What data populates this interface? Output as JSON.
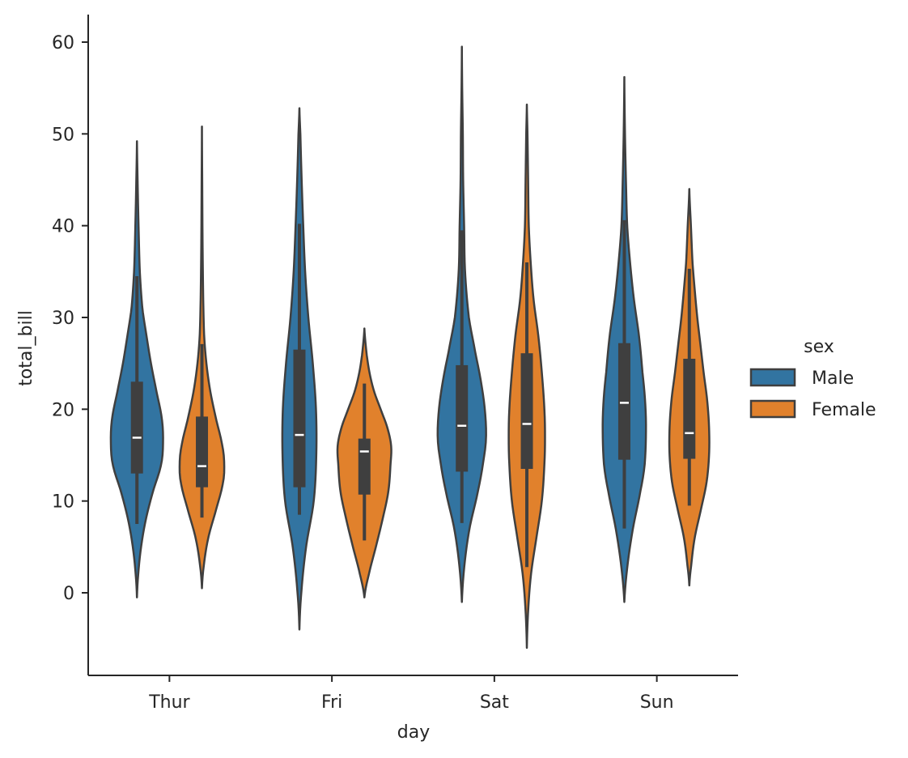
{
  "chart_data": {
    "type": "violin",
    "xlabel": "day",
    "ylabel": "total_bill",
    "categories": [
      "Thur",
      "Fri",
      "Sat",
      "Sun"
    ],
    "ylim": [
      -9,
      63
    ],
    "yticks": [
      0,
      10,
      20,
      30,
      40,
      50,
      60
    ],
    "grid": false,
    "legend": {
      "title": "sex",
      "placement": "center-right"
    },
    "series": [
      {
        "name": "Male",
        "color": "#3274a1",
        "groups": [
          {
            "category": "Thur",
            "range": [
              -0.5,
              49.2
            ],
            "box": {
              "whisker_low": 7.5,
              "q1": 13.0,
              "median": 16.9,
              "q3": 23.0,
              "whisker_high": 34.5
            },
            "density": [
              [
                -0.5,
                0.0
              ],
              [
                2,
                0.04
              ],
              [
                5,
                0.13
              ],
              [
                8,
                0.28
              ],
              [
                11,
                0.5
              ],
              [
                14,
                0.76
              ],
              [
                16.5,
                0.82
              ],
              [
                19,
                0.78
              ],
              [
                22,
                0.61
              ],
              [
                25,
                0.44
              ],
              [
                28,
                0.3
              ],
              [
                31,
                0.17
              ],
              [
                35,
                0.09
              ],
              [
                40,
                0.05
              ],
              [
                45,
                0.02
              ],
              [
                49.2,
                0.0
              ]
            ]
          },
          {
            "category": "Fri",
            "range": [
              -4,
              52.8
            ],
            "box": {
              "whisker_low": 8.5,
              "q1": 11.5,
              "median": 17.2,
              "q3": 26.5,
              "whisker_high": 40.2
            },
            "density": [
              [
                -4,
                0.0
              ],
              [
                0,
                0.06
              ],
              [
                5,
                0.21
              ],
              [
                10,
                0.45
              ],
              [
                15,
                0.53
              ],
              [
                20,
                0.52
              ],
              [
                25,
                0.42
              ],
              [
                30,
                0.28
              ],
              [
                35,
                0.18
              ],
              [
                40,
                0.12
              ],
              [
                45,
                0.07
              ],
              [
                50,
                0.03
              ],
              [
                52.8,
                0.0
              ]
            ]
          },
          {
            "category": "Sat",
            "range": [
              -1,
              59.5
            ],
            "box": {
              "whisker_low": 7.6,
              "q1": 13.2,
              "median": 18.2,
              "q3": 24.8,
              "whisker_high": 39.5
            },
            "density": [
              [
                -1,
                0.0
              ],
              [
                3,
                0.08
              ],
              [
                7,
                0.24
              ],
              [
                11,
                0.5
              ],
              [
                14.5,
                0.68
              ],
              [
                17,
                0.76
              ],
              [
                20,
                0.72
              ],
              [
                23,
                0.6
              ],
              [
                26,
                0.43
              ],
              [
                30,
                0.22
              ],
              [
                35,
                0.1
              ],
              [
                40,
                0.07
              ],
              [
                45,
                0.04
              ],
              [
                50,
                0.03
              ],
              [
                55,
                0.01
              ],
              [
                59.5,
                0.0
              ]
            ]
          },
          {
            "category": "Sun",
            "range": [
              -1,
              56.2
            ],
            "box": {
              "whisker_low": 7.0,
              "q1": 14.5,
              "median": 20.7,
              "q3": 27.2,
              "whisker_high": 40.6
            },
            "density": [
              [
                -1,
                0.0
              ],
              [
                3,
                0.1
              ],
              [
                7,
                0.27
              ],
              [
                11,
                0.5
              ],
              [
                14,
                0.64
              ],
              [
                18,
                0.68
              ],
              [
                21,
                0.65
              ],
              [
                24,
                0.57
              ],
              [
                28,
                0.46
              ],
              [
                32,
                0.3
              ],
              [
                36,
                0.18
              ],
              [
                40,
                0.09
              ],
              [
                45,
                0.05
              ],
              [
                50,
                0.02
              ],
              [
                56.2,
                0.0
              ]
            ]
          }
        ]
      },
      {
        "name": "Female",
        "color": "#e1812c",
        "groups": [
          {
            "category": "Thur",
            "range": [
              0.5,
              50.8
            ],
            "box": {
              "whisker_low": 8.2,
              "q1": 11.5,
              "median": 13.8,
              "q3": 19.2,
              "whisker_high": 27.1
            },
            "density": [
              [
                0.5,
                0.0
              ],
              [
                3,
                0.06
              ],
              [
                6,
                0.2
              ],
              [
                9,
                0.44
              ],
              [
                12,
                0.66
              ],
              [
                14,
                0.7
              ],
              [
                16,
                0.64
              ],
              [
                19,
                0.44
              ],
              [
                22,
                0.26
              ],
              [
                25,
                0.14
              ],
              [
                28,
                0.07
              ],
              [
                32,
                0.04
              ],
              [
                38,
                0.02
              ],
              [
                44,
                0.01
              ],
              [
                50.8,
                0.0
              ]
            ]
          },
          {
            "category": "Fri",
            "range": [
              -0.5,
              28.8
            ],
            "box": {
              "whisker_low": 5.7,
              "q1": 10.7,
              "median": 15.4,
              "q3": 16.8,
              "whisker_high": 22.8
            },
            "density": [
              [
                -0.5,
                0.0
              ],
              [
                2,
                0.14
              ],
              [
                5,
                0.36
              ],
              [
                8,
                0.57
              ],
              [
                11,
                0.75
              ],
              [
                14,
                0.82
              ],
              [
                16,
                0.84
              ],
              [
                18,
                0.72
              ],
              [
                20,
                0.51
              ],
              [
                22,
                0.3
              ],
              [
                24,
                0.16
              ],
              [
                26,
                0.07
              ],
              [
                28.8,
                0.0
              ]
            ]
          },
          {
            "category": "Sat",
            "range": [
              -6,
              53.2
            ],
            "box": {
              "whisker_low": 2.8,
              "q1": 13.5,
              "median": 18.4,
              "q3": 26.1,
              "whisker_high": 36.0
            },
            "density": [
              [
                -6,
                0.0
              ],
              [
                -2,
                0.04
              ],
              [
                2,
                0.13
              ],
              [
                6,
                0.3
              ],
              [
                10,
                0.47
              ],
              [
                14,
                0.55
              ],
              [
                17,
                0.57
              ],
              [
                20,
                0.55
              ],
              [
                24,
                0.47
              ],
              [
                28,
                0.36
              ],
              [
                32,
                0.21
              ],
              [
                36,
                0.12
              ],
              [
                40,
                0.06
              ],
              [
                45,
                0.04
              ],
              [
                50,
                0.02
              ],
              [
                53.2,
                0.0
              ]
            ]
          },
          {
            "category": "Sun",
            "range": [
              0.8,
              44.0
            ],
            "box": {
              "whisker_low": 9.5,
              "q1": 14.6,
              "median": 17.4,
              "q3": 25.5,
              "whisker_high": 35.3
            },
            "density": [
              [
                0.8,
                0.0
              ],
              [
                3,
                0.06
              ],
              [
                6,
                0.17
              ],
              [
                9,
                0.36
              ],
              [
                12,
                0.54
              ],
              [
                15,
                0.62
              ],
              [
                18,
                0.62
              ],
              [
                21,
                0.56
              ],
              [
                24,
                0.45
              ],
              [
                27,
                0.35
              ],
              [
                30,
                0.25
              ],
              [
                33,
                0.17
              ],
              [
                36,
                0.1
              ],
              [
                40,
                0.05
              ],
              [
                44,
                0.0
              ]
            ]
          }
        ]
      }
    ]
  }
}
